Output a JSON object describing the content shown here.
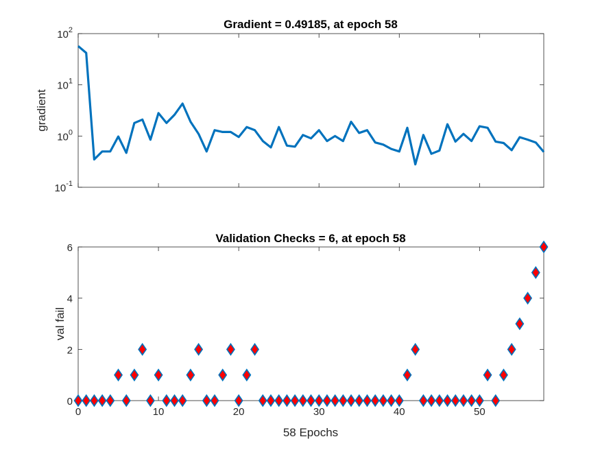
{
  "chart_data": [
    {
      "type": "line",
      "title": "Gradient = 0.49185, at epoch 58",
      "xlabel": "",
      "ylabel": "gradient",
      "yscale": "log",
      "xlim": [
        0,
        58
      ],
      "ylim": [
        0.1,
        100
      ],
      "x_ticks": [
        0,
        10,
        20,
        30,
        40,
        50
      ],
      "y_ticks": [
        {
          "value": 0.1,
          "base": "10",
          "exp": "-1"
        },
        {
          "value": 1,
          "base": "10",
          "exp": "0"
        },
        {
          "value": 10,
          "base": "10",
          "exp": "1"
        },
        {
          "value": 100,
          "base": "10",
          "exp": "2"
        }
      ],
      "grid": false,
      "line_color": "#0072BD",
      "series": [
        {
          "x": [
            0,
            1,
            2,
            3,
            4,
            5,
            6,
            7,
            8,
            9,
            10,
            11,
            12,
            13,
            14,
            15,
            16,
            17,
            18,
            19,
            20,
            21,
            22,
            23,
            24,
            25,
            26,
            27,
            28,
            29,
            30,
            31,
            32,
            33,
            34,
            35,
            36,
            37,
            38,
            39,
            40,
            41,
            42,
            43,
            44,
            45,
            46,
            47,
            48,
            49,
            50,
            51,
            52,
            53,
            54,
            55,
            56,
            57,
            58
          ],
          "values": [
            57,
            42,
            0.35,
            0.5,
            0.5,
            0.98,
            0.47,
            1.8,
            2.1,
            0.85,
            2.8,
            1.8,
            2.6,
            4.3,
            1.9,
            1.1,
            0.5,
            1.3,
            1.2,
            1.2,
            0.96,
            1.5,
            1.3,
            0.8,
            0.6,
            1.5,
            0.65,
            0.62,
            1.05,
            0.9,
            1.3,
            0.8,
            1.0,
            0.8,
            1.9,
            1.15,
            1.3,
            0.75,
            0.68,
            0.56,
            0.5,
            1.45,
            0.28,
            1.05,
            0.45,
            0.52,
            1.7,
            0.78,
            1.1,
            0.8,
            1.55,
            1.45,
            0.78,
            0.73,
            0.53,
            0.95,
            0.85,
            0.75,
            0.49
          ]
        }
      ]
    },
    {
      "type": "scatter",
      "title": "Validation Checks = 6, at epoch 58",
      "xlabel": "58 Epochs",
      "ylabel": "val fail",
      "xlim": [
        0,
        58
      ],
      "ylim": [
        0,
        6
      ],
      "x_ticks": [
        0,
        10,
        20,
        30,
        40,
        50
      ],
      "y_ticks": [
        0,
        2,
        4,
        6
      ],
      "grid": false,
      "marker": "diamond",
      "marker_face": "#FF0000",
      "marker_edge": "#0072BD",
      "series": [
        {
          "x": [
            0,
            1,
            2,
            3,
            4,
            5,
            6,
            7,
            8,
            9,
            10,
            11,
            12,
            13,
            14,
            15,
            16,
            17,
            18,
            19,
            20,
            21,
            22,
            23,
            24,
            25,
            26,
            27,
            28,
            29,
            30,
            31,
            32,
            33,
            34,
            35,
            36,
            37,
            38,
            39,
            40,
            41,
            42,
            43,
            44,
            45,
            46,
            47,
            48,
            49,
            50,
            51,
            52,
            53,
            54,
            55,
            56,
            57,
            58
          ],
          "values": [
            0,
            0,
            0,
            0,
            0,
            1,
            0,
            1,
            2,
            0,
            1,
            0,
            0,
            0,
            1,
            2,
            0,
            0,
            1,
            2,
            0,
            1,
            2,
            0,
            0,
            0,
            0,
            0,
            0,
            0,
            0,
            0,
            0,
            0,
            0,
            0,
            0,
            0,
            0,
            0,
            0,
            1,
            2,
            0,
            0,
            0,
            0,
            0,
            0,
            0,
            0,
            1,
            0,
            1,
            2,
            3,
            4,
            5,
            6
          ]
        }
      ]
    }
  ]
}
